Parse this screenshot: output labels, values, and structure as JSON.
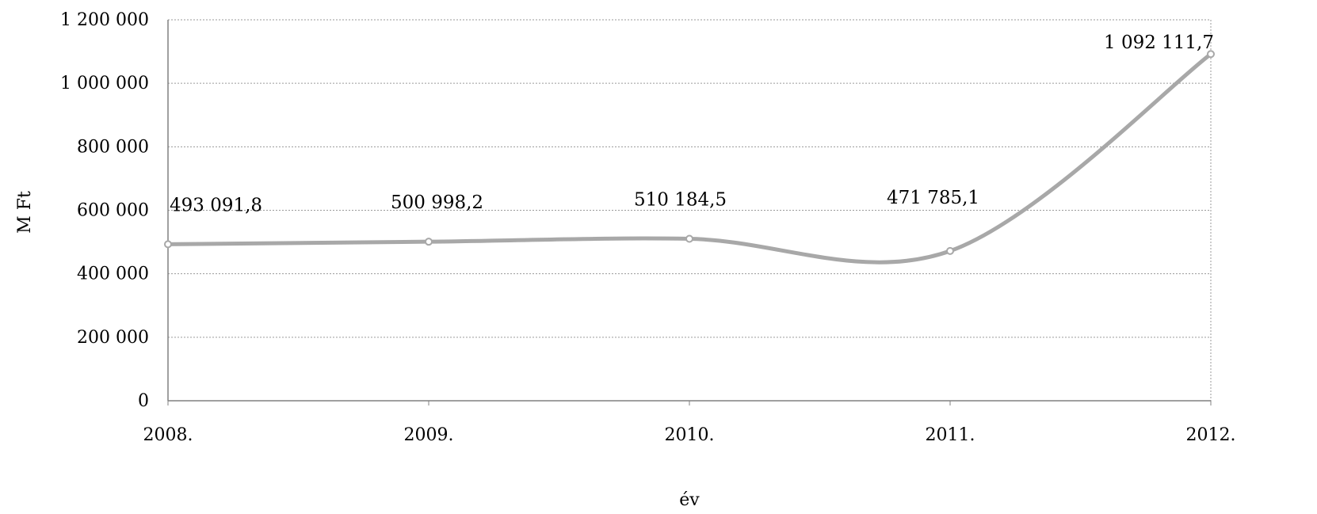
{
  "chart_data": {
    "type": "line",
    "title": "",
    "xlabel": "év",
    "ylabel": "M Ft",
    "categories": [
      "2008.",
      "2009.",
      "2010.",
      "2011.",
      "2012."
    ],
    "series": [
      {
        "values": [
          493091.8,
          500998.2,
          510184.5,
          471785.1,
          1092111.7
        ],
        "data_labels": [
          "493 091,8",
          "500 998,2",
          "510 184,5",
          "471 785,1",
          "1 092 111,7"
        ]
      }
    ],
    "ylim": [
      0,
      1200000
    ],
    "yticks": [
      0,
      200000,
      400000,
      600000,
      800000,
      1000000,
      1200000
    ],
    "ytick_labels": [
      "0",
      "200 000",
      "400 000",
      "600 000",
      "800 000",
      "1 000 000",
      "1 200 000"
    ],
    "grid": true,
    "legend": "none",
    "line_style": "smoothed",
    "colors": {
      "line": "#a8a8a8",
      "grid": "#9a9a9a",
      "axis": "#808080",
      "text": "#000000"
    }
  }
}
